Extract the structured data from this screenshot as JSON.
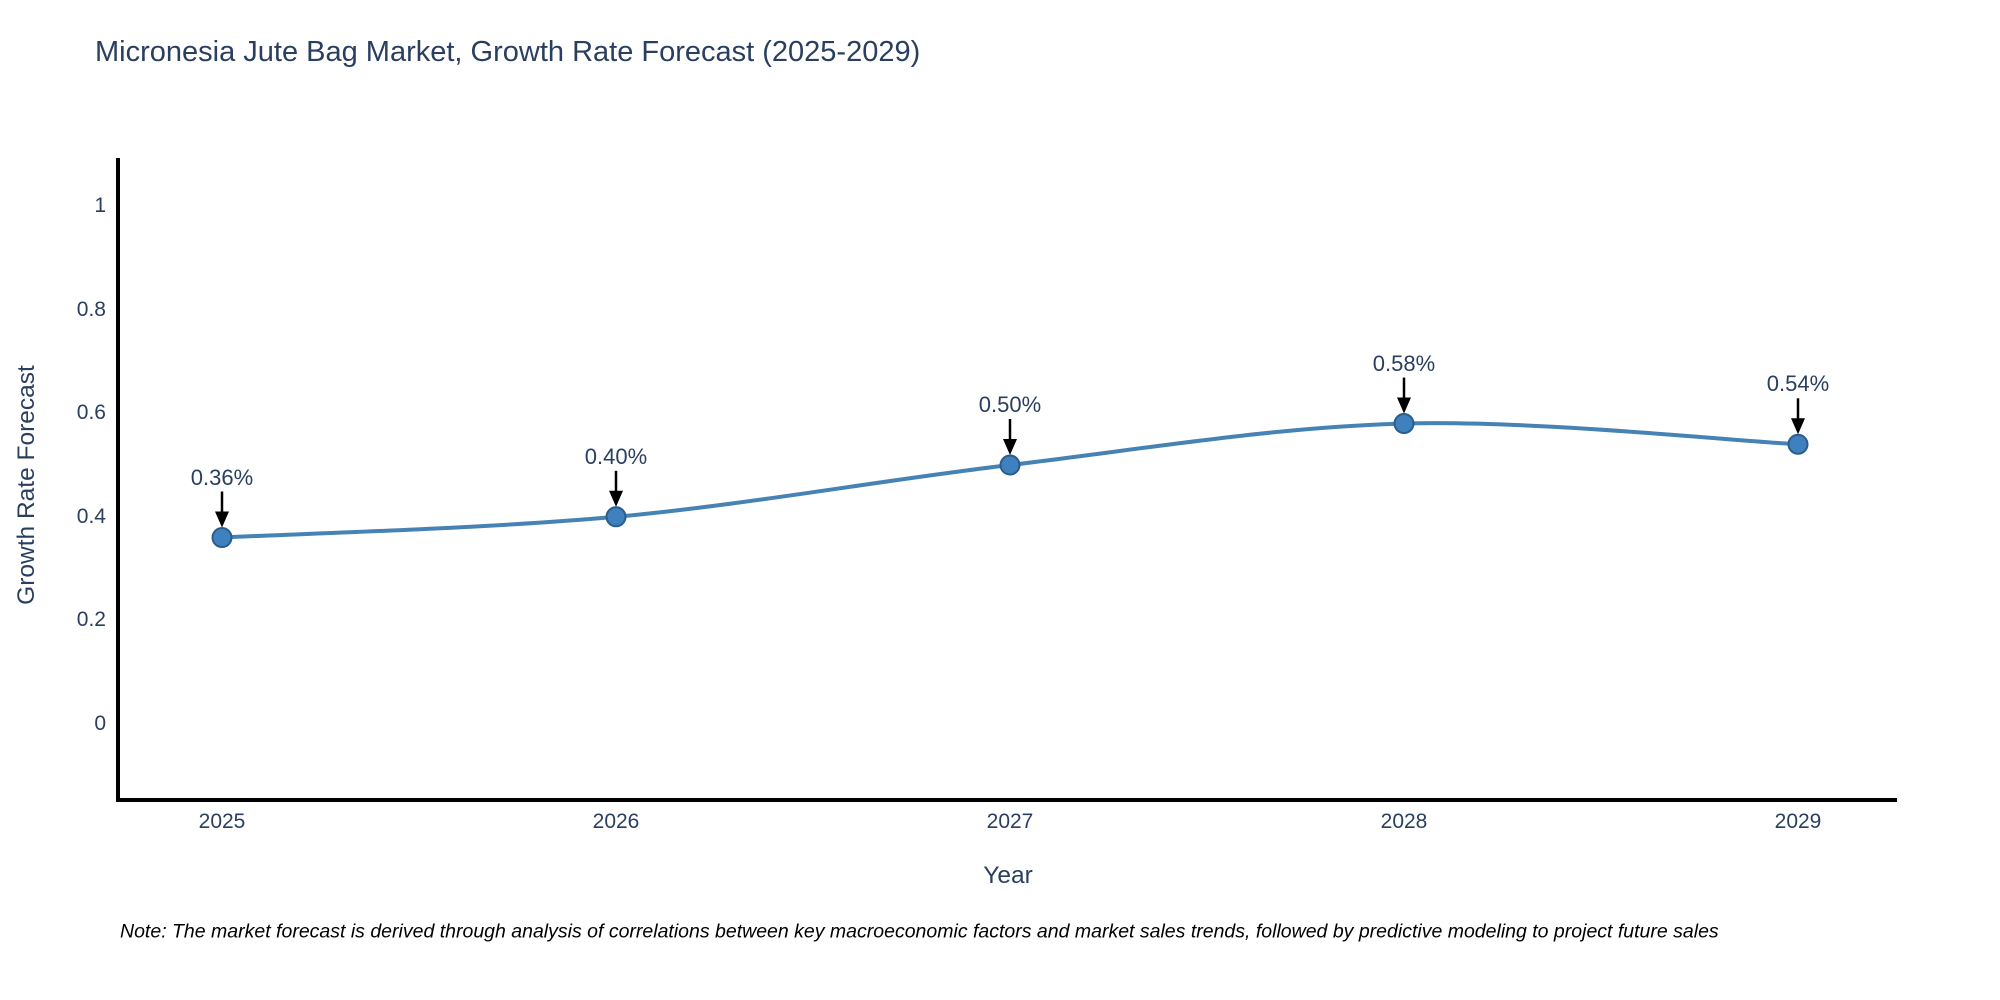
{
  "title": "Micronesia Jute Bag Market, Growth Rate Forecast (2025-2029)",
  "note": "Note: The market forecast is derived through analysis of correlations between key macroeconomic factors and market sales trends, followed by predictive modeling to project future sales",
  "chart_data": {
    "type": "line",
    "line_shape": "spline",
    "title": "Micronesia Jute Bag Market, Growth Rate Forecast (2025-2029)",
    "xlabel": "Year",
    "ylabel": "Growth Rate Forecast",
    "x": [
      2025,
      2026,
      2027,
      2028,
      2029
    ],
    "values": [
      0.36,
      0.4,
      0.5,
      0.58,
      0.54
    ],
    "point_labels": [
      "0.36%",
      "0.40%",
      "0.50%",
      "0.58%",
      "0.54%"
    ],
    "x_ticks": [
      "2025",
      "2026",
      "2027",
      "2028",
      "2029"
    ],
    "y_ticks": [
      "1",
      "0.8",
      "0.6",
      "0.4",
      "0.2",
      "0"
    ],
    "y_tick_values": [
      1,
      0.8,
      0.6,
      0.4,
      0.2,
      0
    ],
    "ylim": [
      -0.15,
      1.1
    ],
    "grid": false,
    "legend": false,
    "line_color": "#4682b4",
    "marker_color": "#3f80bf",
    "marker_border_color": "#2b5d8b",
    "arrow_color": "#000000",
    "axis_color": "#000000",
    "text_color": "#2a3f5f"
  }
}
